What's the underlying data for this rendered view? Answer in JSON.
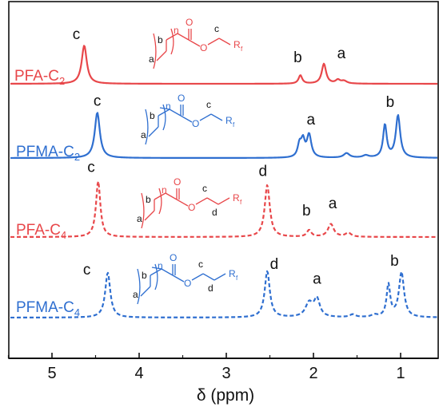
{
  "chart_data": {
    "type": "line",
    "title": "",
    "xlabel": "δ (ppm)",
    "ylabel": "",
    "xlim": [
      5.5,
      0.5
    ],
    "x_reversed": true,
    "x_ticks": [
      5,
      4,
      3,
      2,
      1
    ],
    "x_tick_labels": [
      "5",
      "4",
      "3",
      "2",
      "1"
    ],
    "yticks_shown": false,
    "grid": false,
    "colors": {
      "red": "#e8474a",
      "blue": "#2f6fd0",
      "axis": "#111111"
    },
    "series": [
      {
        "name": "PFA-C2",
        "name_main": "PFA-C",
        "name_sub": "2",
        "color": "red",
        "style": "solid",
        "peaks": [
          {
            "x": 4.63,
            "h": 1.0,
            "w": 0.035,
            "label": "c"
          },
          {
            "x": 2.15,
            "h": 0.22,
            "w": 0.025,
            "label": "b"
          },
          {
            "x": 1.88,
            "h": 0.52,
            "w": 0.03,
            "label": "a"
          },
          {
            "x": 1.72,
            "h": 0.09,
            "w": 0.03
          },
          {
            "x": 1.65,
            "h": 0.07,
            "w": 0.04
          }
        ],
        "labels": [
          {
            "text": "c",
            "x": 4.72,
            "amp": 1.1
          },
          {
            "text": "b",
            "x": 2.18,
            "amp": 0.5
          },
          {
            "text": "a",
            "x": 1.68,
            "amp": 0.6
          }
        ]
      },
      {
        "name": "PFMA-C2",
        "name_main": "PFMA-C",
        "name_sub": "2",
        "color": "blue",
        "style": "solid",
        "peaks": [
          {
            "x": 4.48,
            "h": 1.0,
            "w": 0.035,
            "label": "c"
          },
          {
            "x": 2.16,
            "h": 0.28,
            "w": 0.025
          },
          {
            "x": 2.12,
            "h": 0.35,
            "w": 0.025
          },
          {
            "x": 2.05,
            "h": 0.5,
            "w": 0.03,
            "label": "a"
          },
          {
            "x": 1.62,
            "h": 0.1,
            "w": 0.04
          },
          {
            "x": 1.4,
            "h": 0.05,
            "w": 0.04
          },
          {
            "x": 1.18,
            "h": 0.72,
            "w": 0.025
          },
          {
            "x": 1.03,
            "h": 0.93,
            "w": 0.03,
            "label": "b"
          }
        ],
        "labels": [
          {
            "text": "c",
            "x": 4.48,
            "amp": 1.1
          },
          {
            "text": "a",
            "x": 2.03,
            "amp": 0.68
          },
          {
            "text": "b",
            "x": 1.12,
            "amp": 1.07
          }
        ]
      },
      {
        "name": "PFA-C4",
        "name_main": "PFA-C",
        "name_sub": "4",
        "color": "red",
        "style": "dashed",
        "peaks": [
          {
            "x": 4.47,
            "h": 1.0,
            "w": 0.03,
            "label": "c"
          },
          {
            "x": 2.53,
            "h": 0.93,
            "w": 0.035,
            "label": "d"
          },
          {
            "x": 2.05,
            "h": 0.12,
            "w": 0.03,
            "label": "b"
          },
          {
            "x": 1.8,
            "h": 0.23,
            "w": 0.04,
            "label": "a"
          },
          {
            "x": 1.6,
            "h": 0.07,
            "w": 0.04
          }
        ],
        "labels": [
          {
            "text": "c",
            "x": 4.55,
            "amp": 1.12
          },
          {
            "text": "d",
            "x": 2.58,
            "amp": 1.05
          },
          {
            "text": "b",
            "x": 2.08,
            "amp": 0.34
          },
          {
            "text": "a",
            "x": 1.78,
            "amp": 0.47
          }
        ]
      },
      {
        "name": "PFMA-C4",
        "name_main": "PFMA-C",
        "name_sub": "4",
        "color": "blue",
        "style": "dashed",
        "peaks": [
          {
            "x": 4.36,
            "h": 0.97,
            "w": 0.035,
            "label": "c"
          },
          {
            "x": 2.53,
            "h": 1.0,
            "w": 0.035,
            "label": "d"
          },
          {
            "x": 2.05,
            "h": 0.3,
            "w": 0.05
          },
          {
            "x": 1.96,
            "h": 0.38,
            "w": 0.04,
            "label": "a"
          },
          {
            "x": 1.55,
            "h": 0.06,
            "w": 0.04
          },
          {
            "x": 1.3,
            "h": 0.05,
            "w": 0.04
          },
          {
            "x": 1.14,
            "h": 0.7,
            "w": 0.025
          },
          {
            "x": 0.99,
            "h": 0.97,
            "w": 0.035,
            "label": "b"
          }
        ],
        "labels": [
          {
            "text": "c",
            "x": 4.6,
            "amp": 0.88
          },
          {
            "text": "d",
            "x": 2.45,
            "amp": 1.0
          },
          {
            "text": "a",
            "x": 1.96,
            "amp": 0.68
          },
          {
            "text": "b",
            "x": 1.07,
            "amp": 1.07
          }
        ]
      }
    ],
    "structures": [
      {
        "series": "PFA-C2",
        "color": "red",
        "methyl": false,
        "spacer": false,
        "labels": [
          "a",
          "b",
          "c"
        ],
        "n": "n",
        "rf": "R",
        "rf_sub": "f"
      },
      {
        "series": "PFMA-C2",
        "color": "blue",
        "methyl": true,
        "spacer": false,
        "labels": [
          "a",
          "b",
          "c"
        ],
        "n": "n",
        "rf": "R",
        "rf_sub": "f"
      },
      {
        "series": "PFA-C4",
        "color": "red",
        "methyl": false,
        "spacer": true,
        "labels": [
          "a",
          "b",
          "c",
          "d"
        ],
        "n": "n",
        "rf": "R",
        "rf_sub": "f"
      },
      {
        "series": "PFMA-C4",
        "color": "blue",
        "methyl": true,
        "spacer": true,
        "labels": [
          "a",
          "b",
          "c",
          "d"
        ],
        "n": "n",
        "rf": "R",
        "rf_sub": "f"
      }
    ]
  }
}
